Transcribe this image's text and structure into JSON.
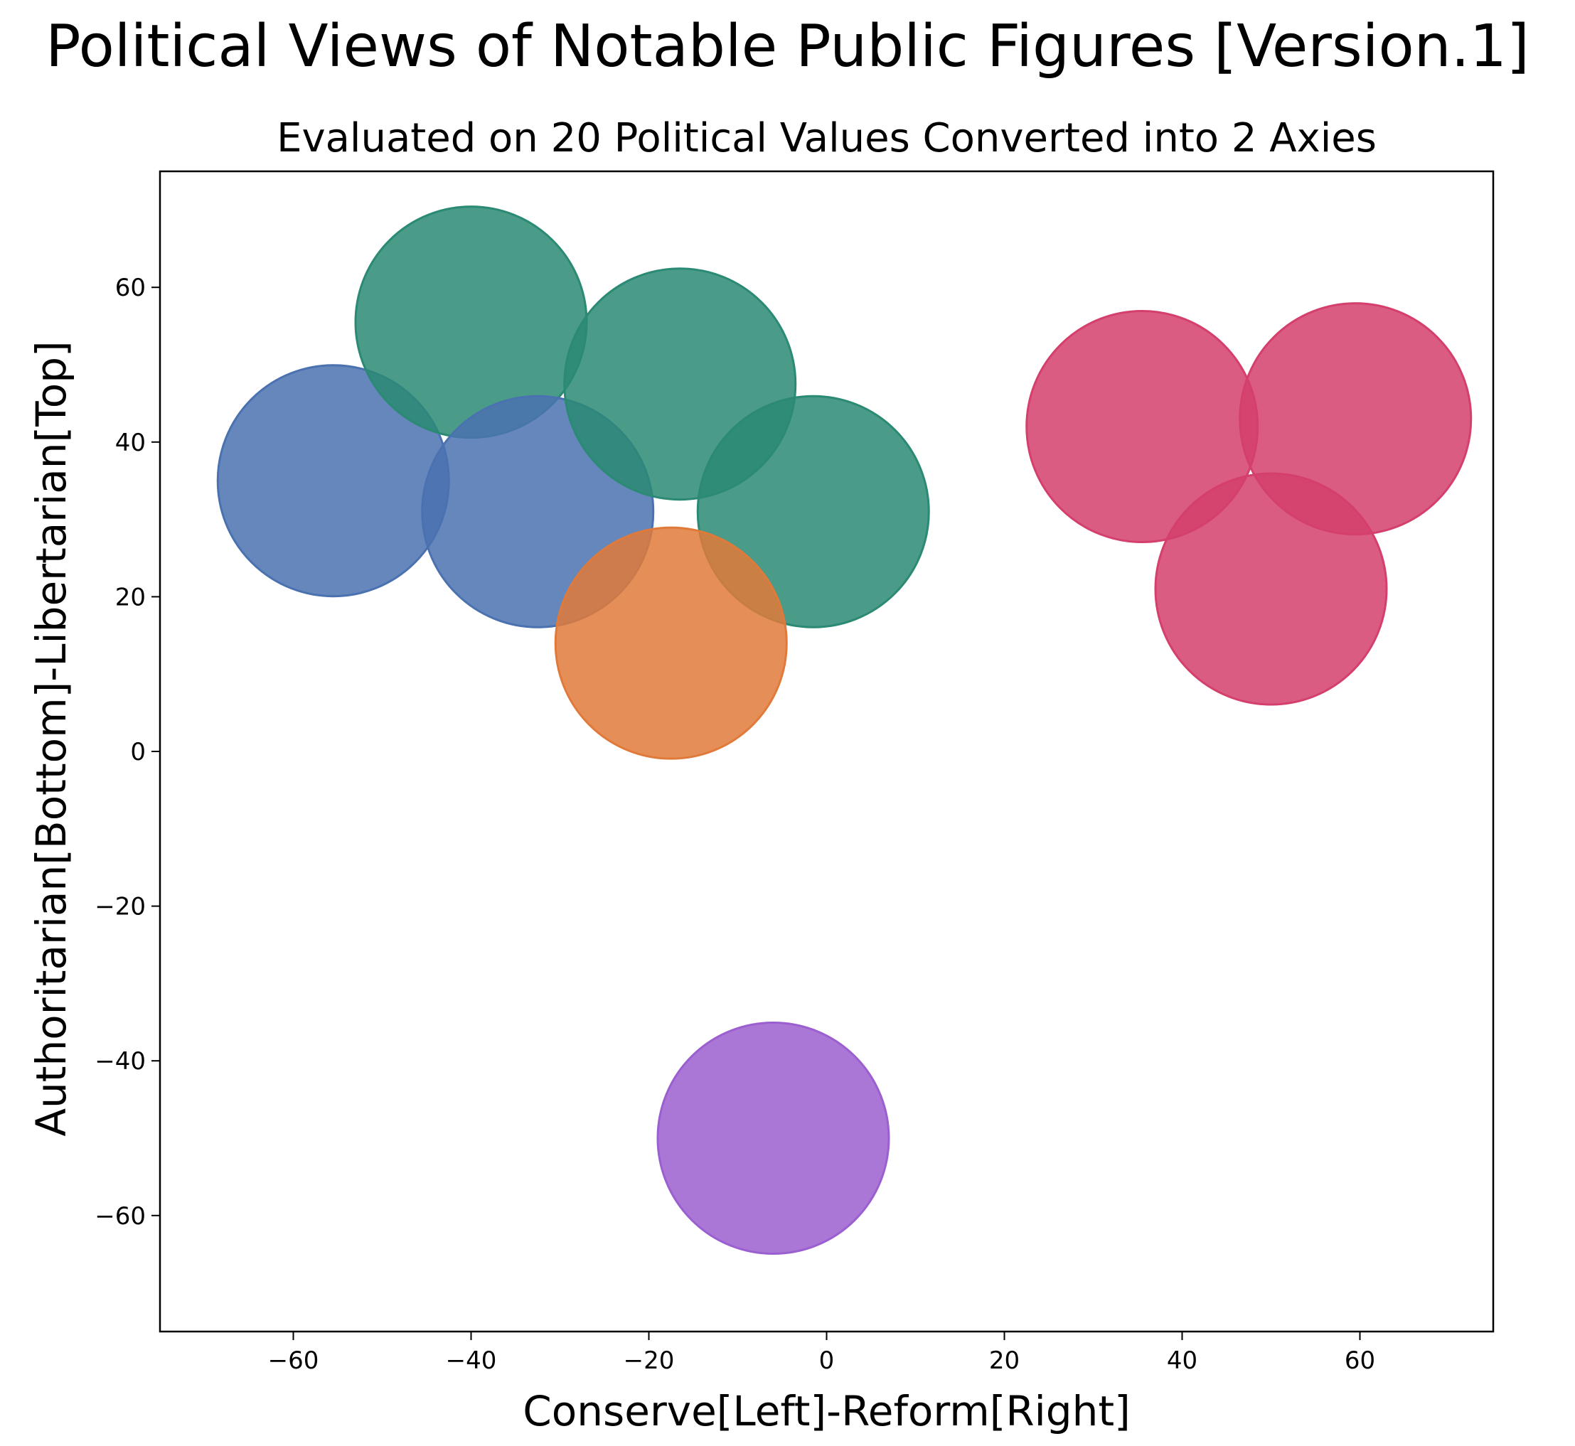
{
  "chart_data": {
    "type": "scatter",
    "suptitle": "Political Views of Notable Public Figures [Version.1]",
    "title": "Evaluated on 20 Political Values Converted into 2 Axies",
    "xlabel": "Conserve[Left]-Reform[Right]",
    "ylabel": "Authoritarian[Bottom]-Libertarian[Top]",
    "xlim": [
      -75,
      75
    ],
    "ylim": [
      -75,
      75
    ],
    "xticks": [
      -60,
      -40,
      -20,
      0,
      20,
      40,
      60
    ],
    "yticks": [
      -60,
      -40,
      -20,
      0,
      20,
      40,
      60
    ],
    "xtick_labels": [
      "−60",
      "−40",
      "−20",
      "0",
      "20",
      "40",
      "60"
    ],
    "ytick_labels": [
      "−60",
      "−40",
      "−20",
      "0",
      "20",
      "40",
      "60"
    ],
    "grid": false,
    "legend": "none",
    "marker_radius_data": 13,
    "points": [
      {
        "x": -55.5,
        "y": 35,
        "color": "#4a72b0"
      },
      {
        "x": -40,
        "y": 55.5,
        "color": "#2a8a73"
      },
      {
        "x": -32.5,
        "y": 31,
        "color": "#4a72b0"
      },
      {
        "x": -16.5,
        "y": 47.5,
        "color": "#2a8a73"
      },
      {
        "x": -1.5,
        "y": 31,
        "color": "#2a8a73"
      },
      {
        "x": -17.5,
        "y": 14,
        "color": "#e07a3a"
      },
      {
        "x": 35.5,
        "y": 42,
        "color": "#d43f6c"
      },
      {
        "x": 59.5,
        "y": 43,
        "color": "#d43f6c"
      },
      {
        "x": 50,
        "y": 21,
        "color": "#d43f6c"
      },
      {
        "x": -6,
        "y": -50,
        "color": "#9b5fd0"
      }
    ]
  }
}
